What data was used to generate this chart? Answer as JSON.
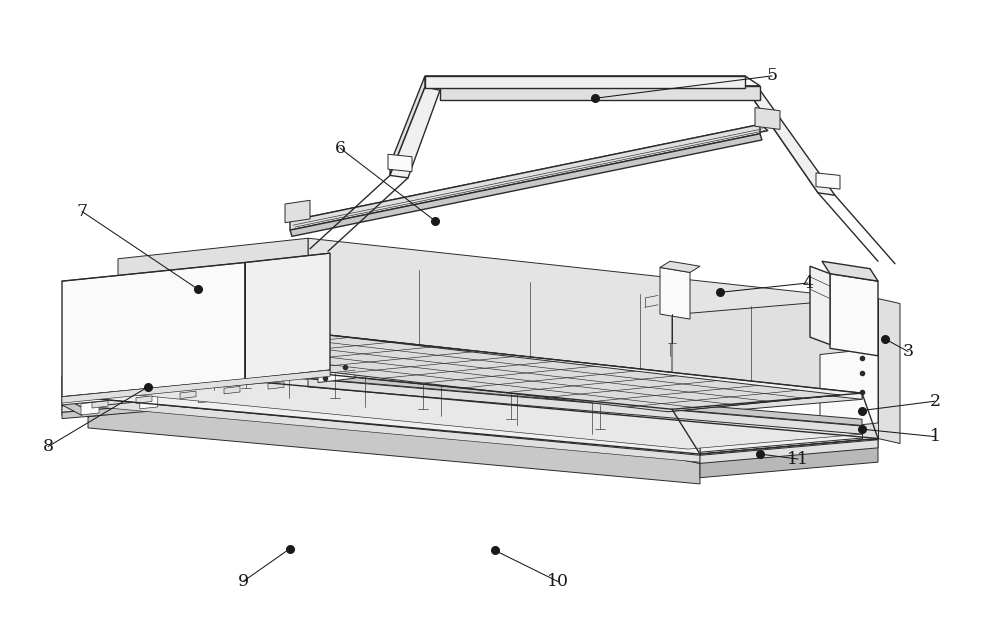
{
  "background_color": "#ffffff",
  "figure_width": 10.0,
  "figure_height": 6.22,
  "dpi": 100,
  "line_color": "#2a2a2a",
  "fill_light": "#f0f0f0",
  "fill_mid": "#e0e0e0",
  "fill_dark": "#c8c8c8",
  "fill_white": "#fafafa",
  "leaders": {
    "1": {
      "dot": [
        0.862,
        0.31
      ],
      "lbl": [
        0.935,
        0.298
      ]
    },
    "2": {
      "dot": [
        0.862,
        0.34
      ],
      "lbl": [
        0.935,
        0.355
      ]
    },
    "3": {
      "dot": [
        0.885,
        0.455
      ],
      "lbl": [
        0.908,
        0.435
      ]
    },
    "4": {
      "dot": [
        0.72,
        0.53
      ],
      "lbl": [
        0.808,
        0.545
      ]
    },
    "5": {
      "dot": [
        0.595,
        0.842
      ],
      "lbl": [
        0.772,
        0.878
      ]
    },
    "6": {
      "dot": [
        0.435,
        0.645
      ],
      "lbl": [
        0.34,
        0.762
      ]
    },
    "7": {
      "dot": [
        0.198,
        0.535
      ],
      "lbl": [
        0.082,
        0.66
      ]
    },
    "8": {
      "dot": [
        0.148,
        0.378
      ],
      "lbl": [
        0.048,
        0.282
      ]
    },
    "9": {
      "dot": [
        0.29,
        0.118
      ],
      "lbl": [
        0.243,
        0.065
      ]
    },
    "10": {
      "dot": [
        0.495,
        0.115
      ],
      "lbl": [
        0.558,
        0.065
      ]
    },
    "11": {
      "dot": [
        0.76,
        0.27
      ],
      "lbl": [
        0.798,
        0.262
      ]
    }
  }
}
